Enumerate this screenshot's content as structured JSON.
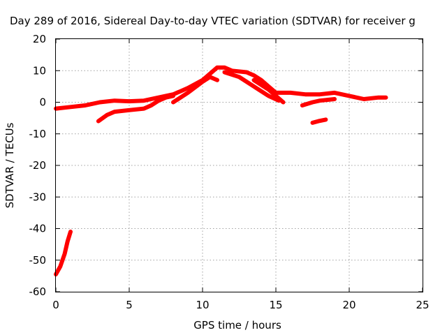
{
  "chart_data": {
    "type": "line",
    "title": "Day 289 of 2016, Sidereal Day-to-day VTEC variation (SDTVAR) for receiver g",
    "xlabel": "GPS time / hours",
    "ylabel": "SDTVAR / TECUs",
    "xlim": [
      0,
      25
    ],
    "ylim": [
      -60,
      20
    ],
    "xticks": [
      0,
      5,
      10,
      15,
      20,
      25
    ],
    "yticks": [
      -60,
      -50,
      -40,
      -30,
      -20,
      -10,
      0,
      10,
      20
    ],
    "grid": true,
    "color": "#ff0000",
    "series": [
      {
        "x": [
          0,
          0.3,
          0.6,
          0.8,
          1.0
        ],
        "y": [
          -54.5,
          -52,
          -48,
          -44,
          -41
        ]
      },
      {
        "x": [
          0,
          1,
          2,
          3,
          4,
          5,
          6,
          7,
          7.5,
          8,
          8.5,
          9,
          10,
          10.5,
          11,
          11.5,
          12,
          13,
          13.5,
          14,
          14.5,
          15,
          16,
          17,
          18,
          19,
          20,
          21,
          22,
          22.5
        ],
        "y": [
          -2,
          -1.5,
          -1,
          0,
          0.5,
          0.3,
          0.5,
          1.5,
          2,
          2.5,
          3.5,
          4.5,
          7,
          9,
          11,
          11,
          10,
          9.5,
          8.5,
          7,
          5,
          3,
          3,
          2.5,
          2.5,
          3,
          2,
          1,
          1.5,
          1.5
        ]
      },
      {
        "x": [
          2.9,
          3.5,
          4,
          5,
          6,
          6.5,
          7,
          7.5,
          8
        ],
        "y": [
          -6,
          -4,
          -3,
          -2.5,
          -2,
          -1,
          0.5,
          1.5,
          2
        ]
      },
      {
        "x": [
          8,
          9,
          10,
          10.5,
          11
        ],
        "y": [
          0,
          3,
          6.5,
          8,
          7
        ]
      },
      {
        "x": [
          11.5,
          12.5,
          13.5,
          14.5,
          15.2
        ],
        "y": [
          9.5,
          8,
          5,
          2,
          0.5
        ]
      },
      {
        "x": [
          13.5,
          14.5,
          15.5
        ],
        "y": [
          7,
          4,
          0
        ]
      },
      {
        "x": [
          16.8,
          17.5,
          18,
          19
        ],
        "y": [
          -1,
          0,
          0.5,
          1
        ]
      },
      {
        "x": [
          17.5,
          17.9,
          18.4
        ],
        "y": [
          -6.5,
          -6,
          -5.5
        ]
      }
    ]
  }
}
